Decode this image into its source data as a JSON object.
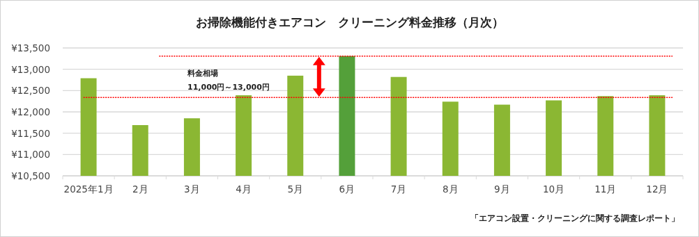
{
  "chart_data": {
    "type": "bar",
    "title": "お掃除機能付きエアコン　クリーニング料金推移（月次）",
    "categories": [
      "2025年1月",
      "2月",
      "3月",
      "4月",
      "5月",
      "6月",
      "7月",
      "8月",
      "9月",
      "10月",
      "11月",
      "12月"
    ],
    "values": [
      12790,
      11690,
      11850,
      12390,
      12850,
      13310,
      12820,
      12240,
      12170,
      12270,
      12370,
      12390
    ],
    "colors": [
      "#8bb733",
      "#8bb733",
      "#8bb733",
      "#8bb733",
      "#8bb733",
      "#54a03a",
      "#8bb733",
      "#8bb733",
      "#8bb733",
      "#8bb733",
      "#8bb733",
      "#8bb733"
    ],
    "ylim": [
      10500,
      13500
    ],
    "yticks": [
      {
        "value": 10500,
        "label": "¥10,500"
      },
      {
        "value": 11000,
        "label": "¥11,000"
      },
      {
        "value": 11500,
        "label": "¥11,500"
      },
      {
        "value": 12000,
        "label": "¥12,000"
      },
      {
        "value": 12500,
        "label": "¥12,500"
      },
      {
        "value": 13000,
        "label": "¥13,000"
      },
      {
        "value": 13500,
        "label": "¥13,500"
      }
    ],
    "grid": "y",
    "ref_lines": [
      {
        "axis": "y",
        "value": 12340,
        "color": "#ff0000",
        "line_style": "dotted"
      },
      {
        "axis": "y",
        "value": 13310,
        "color": "#ff0000",
        "line_style": "dotted"
      }
    ],
    "annotations": [
      "料金相場",
      "11,000円～13,000円",
      "「エアコン設置・クリーニングに関する調査レポート」"
    ]
  }
}
